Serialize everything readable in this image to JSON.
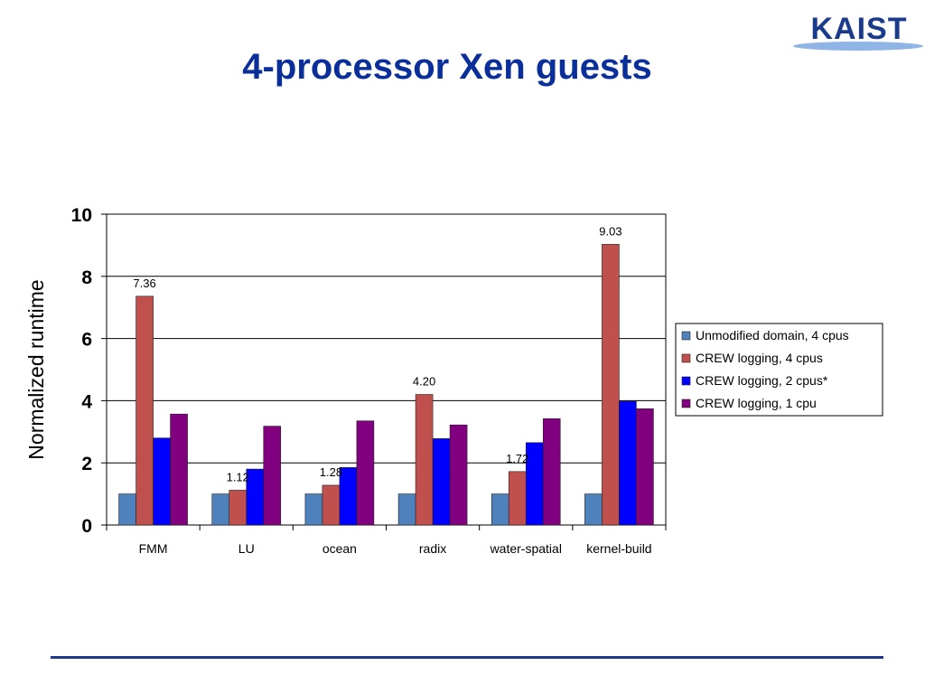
{
  "slide": {
    "title": "4-processor Xen guests",
    "logo_text": "KAIST"
  },
  "colors": {
    "title": "#0a2f9a",
    "logo": "#1a3b8c",
    "logo_swoosh": "#8fb4e6",
    "footer_rule": "#1a3b8c"
  },
  "chart_data": {
    "type": "bar",
    "title": "",
    "xlabel": "",
    "ylabel": "Normalized runtime",
    "ylim": [
      0,
      10
    ],
    "yticks": [
      0,
      2,
      4,
      6,
      8,
      10
    ],
    "grid": true,
    "legend_position": "right",
    "categories": [
      "FMM",
      "LU",
      "ocean",
      "radix",
      "water-spatial",
      "kernel-build"
    ],
    "series": [
      {
        "name": "Unmodified domain, 4 cpus",
        "color": "#4f81bd",
        "values": [
          1.0,
          1.0,
          1.0,
          1.0,
          1.0,
          1.0
        ]
      },
      {
        "name": "CREW logging, 4 cpus",
        "color": "#c0504d",
        "values": [
          7.36,
          1.12,
          1.28,
          4.2,
          1.72,
          9.03
        ],
        "labels": [
          "7.36",
          "1.12",
          "1.28",
          "4.20",
          "1.72",
          "9.03"
        ]
      },
      {
        "name": "CREW logging, 2 cpus*",
        "color": "#0000ff",
        "values": [
          2.8,
          1.8,
          1.85,
          2.78,
          2.65,
          3.98
        ]
      },
      {
        "name": "CREW logging, 1 cpu",
        "color": "#800080",
        "values": [
          3.57,
          3.18,
          3.35,
          3.22,
          3.42,
          3.74
        ]
      }
    ]
  }
}
